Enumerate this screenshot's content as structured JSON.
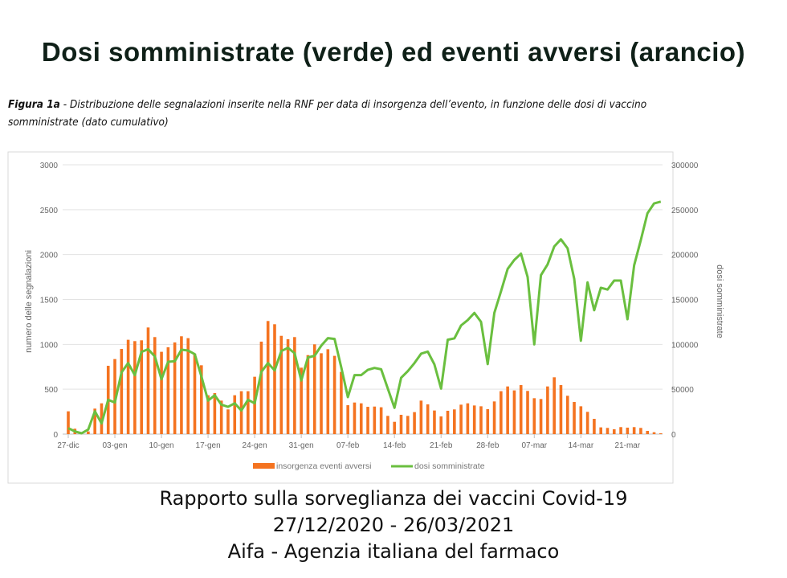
{
  "title": "Dosi somministrate (verde) ed eventi avversi (arancio)",
  "caption": {
    "label": "Figura 1a",
    "text": " - Distribuzione delle segnalazioni inserite nella RNF per data di insorgenza dell’evento, in funzione delle dosi di vaccino somministrate (dato cumulativo)"
  },
  "footer": {
    "line1": "Rapporto sulla sorveglianza dei vaccini Covid-19",
    "line2": "27/12/2020 - 26/03/2021",
    "line3": "Aifa - Agenzia italiana del farmaco"
  },
  "chart_data": {
    "type": "bar+line",
    "xlabel": "",
    "ylabel": "numero delle segnalazioni",
    "y2label": "dosi somministrate",
    "ylim": [
      0,
      3000
    ],
    "y2lim": [
      0,
      300000
    ],
    "yticks": [
      0,
      500,
      1000,
      1500,
      2000,
      2500,
      3000
    ],
    "y2ticks": [
      0,
      50000,
      100000,
      150000,
      200000,
      250000,
      300000
    ],
    "x_start": "27-dic",
    "x_end": "26-mar",
    "xtick_labels": [
      "27-dic",
      "03-gen",
      "10-gen",
      "17-gen",
      "24-gen",
      "31-gen",
      "07-feb",
      "14-feb",
      "21-feb",
      "28-feb",
      "07-mar",
      "14-mar",
      "21-mar"
    ],
    "grid": true,
    "legend": "bottom",
    "colors": {
      "bars": "#f47320",
      "line": "#6abf3f"
    },
    "series": [
      {
        "name": "insorgenza eventi avversi",
        "type": "bar",
        "axis": "left",
        "values": [
          254,
          60,
          0,
          30,
          284,
          343,
          761,
          836,
          949,
          1051,
          1036,
          1045,
          1188,
          1081,
          917,
          967,
          1021,
          1090,
          1069,
          896,
          767,
          433,
          457,
          373,
          275,
          433,
          478,
          478,
          639,
          1030,
          1260,
          1224,
          1095,
          1057,
          1081,
          740,
          880,
          1000,
          901,
          946,
          872,
          693,
          322,
          352,
          343,
          304,
          307,
          299,
          203,
          137,
          215,
          203,
          245,
          373,
          331,
          263,
          197,
          260,
          275,
          328,
          343,
          319,
          310,
          278,
          364,
          478,
          531,
          487,
          546,
          481,
          400,
          391,
          531,
          633,
          546,
          427,
          358,
          310,
          248,
          170,
          75,
          69,
          54,
          78,
          72,
          78,
          69,
          36,
          21,
          9
        ]
      },
      {
        "name": "dosi somministrate",
        "type": "line",
        "axis": "right",
        "values": [
          6600,
          3000,
          900,
          5100,
          25400,
          11900,
          38200,
          35200,
          68700,
          79100,
          65700,
          91600,
          94600,
          86600,
          61200,
          80600,
          81200,
          94000,
          93100,
          89000,
          64200,
          37300,
          43300,
          32800,
          30400,
          34300,
          26300,
          38200,
          34300,
          69300,
          79100,
          71000,
          92500,
          96100,
          90100,
          59700,
          85400,
          87200,
          98500,
          106900,
          106000,
          74600,
          41200,
          65700,
          65700,
          71600,
          73700,
          72200,
          50700,
          29300,
          62700,
          70100,
          79100,
          89600,
          91900,
          77600,
          50700,
          105100,
          106600,
          121000,
          127000,
          135000,
          125000,
          78000,
          135000,
          159000,
          184000,
          194000,
          201000,
          175000,
          100000,
          177000,
          189000,
          209000,
          217000,
          207000,
          173000,
          104000,
          169000,
          138000,
          163000,
          161000,
          171000,
          171000,
          128000,
          188000,
          216000,
          246000,
          257000,
          259000
        ]
      }
    ]
  }
}
